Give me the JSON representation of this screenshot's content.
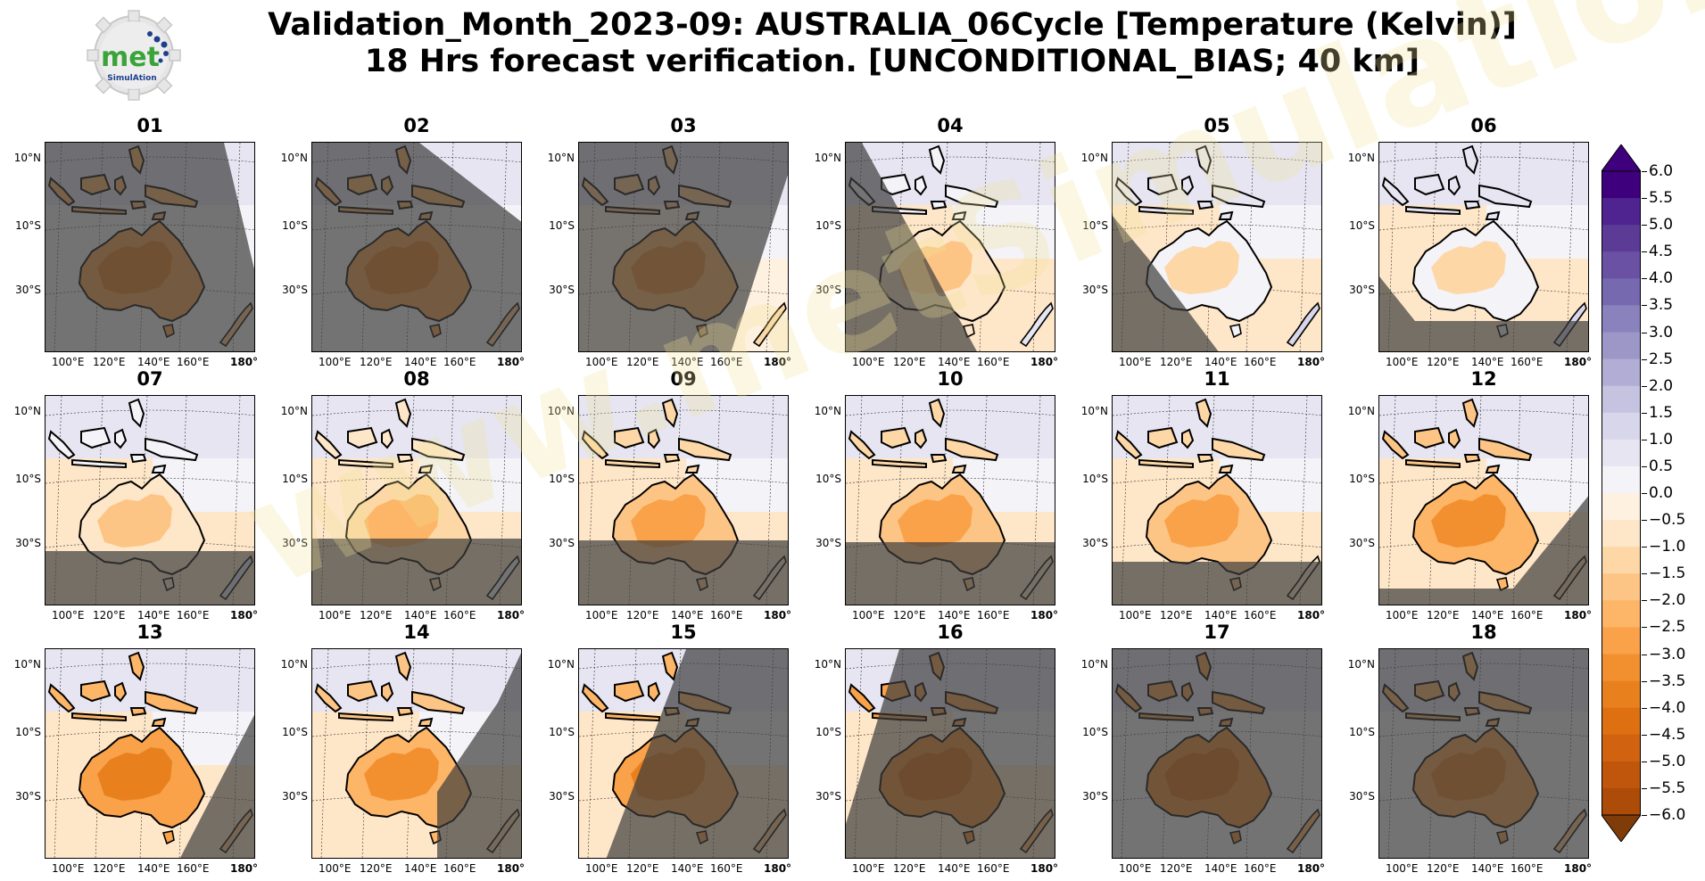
{
  "title": {
    "line1": "Validation_Month_2023-09: AUSTRALIA_06Cycle [Temperature (Kelvin)]",
    "line2": "18 Hrs forecast verification. [UNCONDITIONAL_BIAS; 40 km]"
  },
  "logo": {
    "text_main": "met",
    "text_sub": "SimulAtion"
  },
  "watermark": "www.metSimulation.com",
  "colors": {
    "cool": [
      "#f4f3f7",
      "#e6e5f1",
      "#d8d6ea",
      "#c6c3e0",
      "#b2add4",
      "#9d97c8",
      "#8a82bd",
      "#7769b0",
      "#6a51a3",
      "#5c3b97",
      "#4f2390",
      "#3f007d"
    ],
    "warm": [
      "#fff1e0",
      "#fee6c8",
      "#fdd7a6",
      "#fdc585",
      "#fdb567",
      "#f9a24a",
      "#f29030",
      "#e8801e",
      "#de7012",
      "#d06210",
      "#c0560c",
      "#ad4b08",
      "#9c4407",
      "#8a3c06",
      "#7f3b08"
    ],
    "shade": "rgba(60,60,60,0.70)",
    "land_outline": "#000000"
  },
  "chart_data": {
    "type": "heatmap",
    "variable": "Temperature (Kelvin)",
    "metric": "UNCONDITIONAL_BIAS",
    "panels": [
      {
        "label": "01",
        "mean_bias_land": -3.5,
        "mean_bias_sea": 0.3
      },
      {
        "label": "02",
        "mean_bias_land": -3.5,
        "mean_bias_sea": 0.3
      },
      {
        "label": "03",
        "mean_bias_land": -3.0,
        "mean_bias_sea": -0.3
      },
      {
        "label": "04",
        "mean_bias_land": -1.5,
        "mean_bias_sea": -0.5
      },
      {
        "label": "05",
        "mean_bias_land": -1.0,
        "mean_bias_sea": -0.5
      },
      {
        "label": "06",
        "mean_bias_land": -1.0,
        "mean_bias_sea": -0.5
      },
      {
        "label": "07",
        "mean_bias_land": -1.5,
        "mean_bias_sea": -0.5
      },
      {
        "label": "08",
        "mean_bias_land": -2.0,
        "mean_bias_sea": -0.5
      },
      {
        "label": "09",
        "mean_bias_land": -2.5,
        "mean_bias_sea": -0.5
      },
      {
        "label": "10",
        "mean_bias_land": -2.5,
        "mean_bias_sea": -0.5
      },
      {
        "label": "11",
        "mean_bias_land": -2.5,
        "mean_bias_sea": -0.5
      },
      {
        "label": "12",
        "mean_bias_land": -3.0,
        "mean_bias_sea": -0.5
      },
      {
        "label": "13",
        "mean_bias_land": -3.5,
        "mean_bias_sea": -0.5
      },
      {
        "label": "14",
        "mean_bias_land": -3.0,
        "mean_bias_sea": -0.5
      },
      {
        "label": "15",
        "mean_bias_land": -3.5,
        "mean_bias_sea": -0.5
      },
      {
        "label": "16",
        "mean_bias_land": -4.0,
        "mean_bias_sea": -0.5
      },
      {
        "label": "17",
        "mean_bias_land": -4.0,
        "mean_bias_sea": 0.0
      },
      {
        "label": "18",
        "mean_bias_land": -3.5,
        "mean_bias_sea": 0.0
      }
    ],
    "lat_ticks": [
      "10°N",
      "10°S",
      "30°S"
    ],
    "lon_ticks": [
      "100°E",
      "120°E",
      "140°E",
      "160°E",
      "180°"
    ],
    "colorbar": {
      "min": -6.0,
      "max": 6.0,
      "step": 0.5,
      "extend": "both",
      "tick_labels": [
        "6.0",
        "5.5",
        "5.0",
        "4.5",
        "4.0",
        "3.5",
        "3.0",
        "2.5",
        "2.0",
        "1.5",
        "1.0",
        "0.5",
        "0.0",
        "−0.5",
        "−1.0",
        "−1.5",
        "−2.0",
        "−2.5",
        "−3.0",
        "−3.5",
        "−4.0",
        "−4.5",
        "−5.0",
        "−5.5",
        "−6.0"
      ]
    }
  }
}
